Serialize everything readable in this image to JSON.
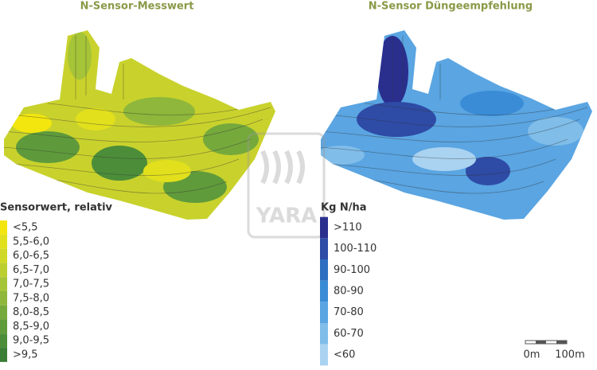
{
  "left_map": {
    "title": "N-Sensor-Messwert",
    "legend": {
      "title": "Sensorwert, relativ",
      "items": [
        {
          "label": "<5,5",
          "color": "#f3e60f"
        },
        {
          "label": "5,5-6,0",
          "color": "#e2e01c"
        },
        {
          "label": "6,0-6,5",
          "color": "#d0d828"
        },
        {
          "label": "6,5-7,0",
          "color": "#bccf31"
        },
        {
          "label": "7,0-7,5",
          "color": "#a6c437"
        },
        {
          "label": "7,5-8,0",
          "color": "#8eb73b"
        },
        {
          "label": "8,0-8,5",
          "color": "#76a93c"
        },
        {
          "label": "8,5-9,0",
          "color": "#609b3b"
        },
        {
          "label": "9,0-9,5",
          "color": "#4c8d39"
        },
        {
          "label": ">9,5",
          "color": "#3a7d35"
        }
      ]
    }
  },
  "right_map": {
    "title": "N-Sensor Düngeempfehlung",
    "legend": {
      "title": "Kg N/ha",
      "items": [
        {
          "label": ">110",
          "color": "#2a2f8e"
        },
        {
          "label": "100-110",
          "color": "#2e4ba6"
        },
        {
          "label": "90-100",
          "color": "#2e6ec0"
        },
        {
          "label": "80-90",
          "color": "#3a8cd6"
        },
        {
          "label": "70-80",
          "color": "#5aa5e2"
        },
        {
          "label": "60-70",
          "color": "#80bde9"
        },
        {
          "label": "<60",
          "color": "#aad3f1"
        }
      ]
    }
  },
  "watermark": "YARA",
  "scale_bar": {
    "labels": [
      "0m",
      "100m"
    ]
  }
}
